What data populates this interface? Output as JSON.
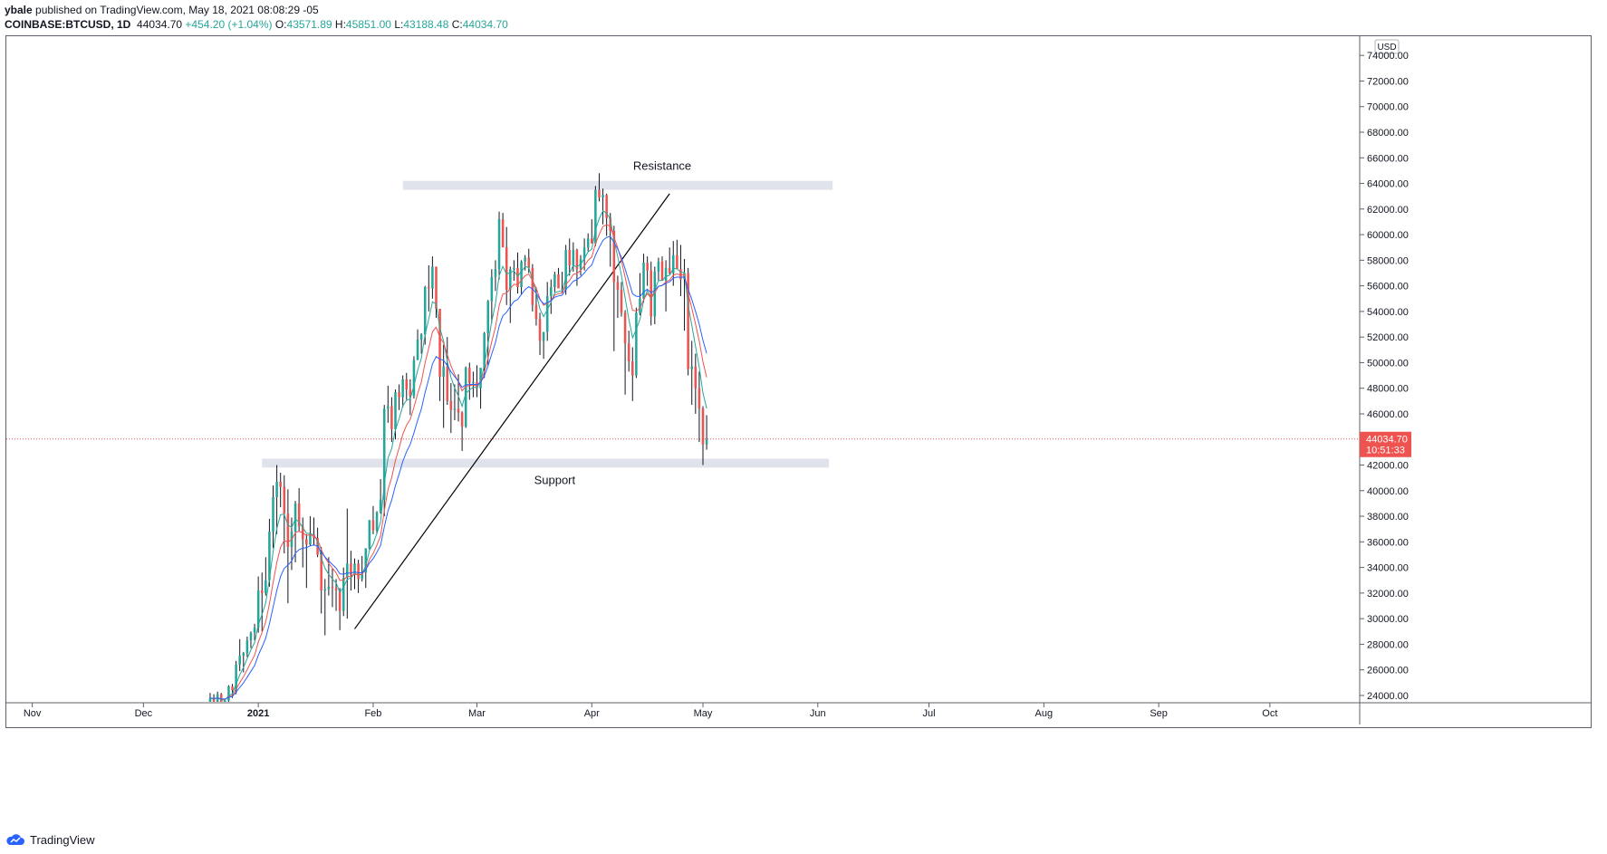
{
  "header": {
    "published_by": "ybale",
    "published_text": "published on TradingView.com, May 18, 2021 08:08:29 -05",
    "symbol": "COINBASE:BTCUSD, 1D",
    "last": "44034.70",
    "change": "+454.20 (+1.04%)",
    "o_label": "O:",
    "o_value": "43571.89",
    "h_label": "H:",
    "h_value": "45851.00",
    "l_label": "L:",
    "l_value": "43188.48",
    "c_label": "C:",
    "c_value": "44034.70"
  },
  "footer": {
    "logo_text": "TradingView"
  },
  "colors": {
    "up": "#26a69a",
    "down": "#ef5350",
    "wick": "#131722",
    "ma_fast": "#26a69a",
    "ma_mid": "#ef5350",
    "ma_slow": "#2962ff",
    "price_line": "#ef5350",
    "zone": "#e0e3eb",
    "trend": "#000000"
  },
  "chart_data": {
    "type": "candlestick",
    "currency_label": "USD",
    "y_ticks": [
      "24000.00",
      "26000.00",
      "28000.00",
      "30000.00",
      "32000.00",
      "34000.00",
      "36000.00",
      "38000.00",
      "40000.00",
      "42000.00",
      "44000.00",
      "46000.00",
      "48000.00",
      "50000.00",
      "52000.00",
      "54000.00",
      "56000.00",
      "58000.00",
      "60000.00",
      "62000.00",
      "64000.00",
      "66000.00",
      "68000.00",
      "70000.00",
      "72000.00",
      "74000.00"
    ],
    "ylim": [
      23500,
      75500
    ],
    "x_ticks": [
      {
        "label": "Nov",
        "date": "2020-11-01",
        "bold": false
      },
      {
        "label": "Dec",
        "date": "2020-12-01",
        "bold": false
      },
      {
        "label": "2021",
        "date": "2021-01-01",
        "bold": true
      },
      {
        "label": "Feb",
        "date": "2021-02-01",
        "bold": false
      },
      {
        "label": "Mar",
        "date": "2021-03-01",
        "bold": false
      },
      {
        "label": "Apr",
        "date": "2021-04-01",
        "bold": false
      },
      {
        "label": "May",
        "date": "2021-05-01",
        "bold": false
      },
      {
        "label": "Jun",
        "date": "2021-06-01",
        "bold": false
      },
      {
        "label": "Jul",
        "date": "2021-07-01",
        "bold": false
      },
      {
        "label": "Aug",
        "date": "2021-08-01",
        "bold": false
      },
      {
        "label": "Sep",
        "date": "2021-09-01",
        "bold": false
      },
      {
        "label": "Oct",
        "date": "2021-10-01",
        "bold": false
      }
    ],
    "xlim": [
      "2020-10-25",
      "2021-10-25"
    ],
    "last_price": {
      "value": 44034.7,
      "label": "44034.70",
      "countdown": "10:51:33"
    },
    "annotations": [
      {
        "type": "zone",
        "label": "Resistance",
        "x_start": "2021-02-09",
        "x_end": "2021-06-05",
        "y_low": 63500,
        "y_high": 64200
      },
      {
        "type": "zone",
        "label": "Support",
        "x_start": "2021-01-02",
        "x_end": "2021-06-04",
        "y_low": 41800,
        "y_high": 42500
      },
      {
        "type": "trendline",
        "x_start": "2021-01-27",
        "y_start": 29200,
        "x_end": "2021-04-22",
        "y_end": 63200
      }
    ],
    "first_date": "2020-12-19",
    "candles": [
      [
        23100,
        24200,
        22600,
        23800
      ],
      [
        23800,
        24100,
        23000,
        23500
      ],
      [
        23500,
        24300,
        23100,
        24100
      ],
      [
        24100,
        24200,
        22700,
        23300
      ],
      [
        23300,
        23600,
        22900,
        23600
      ],
      [
        23600,
        24800,
        23300,
        24700
      ],
      [
        24700,
        24900,
        23800,
        24400
      ],
      [
        24400,
        26700,
        24100,
        26400
      ],
      [
        26400,
        28400,
        25900,
        27100
      ],
      [
        27100,
        27400,
        25800,
        27300
      ],
      [
        27300,
        28600,
        27000,
        28300
      ],
      [
        28300,
        29000,
        27700,
        28900
      ],
      [
        28900,
        29600,
        28300,
        29300
      ],
      [
        29300,
        33300,
        28900,
        32200
      ],
      [
        32200,
        33600,
        29000,
        32000
      ],
      [
        32000,
        34800,
        31800,
        33000
      ],
      [
        33000,
        37800,
        32500,
        36800
      ],
      [
        36800,
        40400,
        35500,
        39500
      ],
      [
        39500,
        42000,
        36600,
        40700
      ],
      [
        40700,
        41400,
        38700,
        40300
      ],
      [
        40300,
        41200,
        35100,
        38200
      ],
      [
        38200,
        40100,
        31200,
        35600
      ],
      [
        35600,
        37900,
        33800,
        36800
      ],
      [
        36800,
        39200,
        34400,
        39000
      ],
      [
        39000,
        40200,
        36800,
        37200
      ],
      [
        37200,
        37900,
        34000,
        36200
      ],
      [
        36200,
        36600,
        32400,
        35800
      ],
      [
        35800,
        38000,
        35700,
        36600
      ],
      [
        36600,
        37900,
        35700,
        36300
      ],
      [
        36300,
        37100,
        34800,
        35000
      ],
      [
        35000,
        35600,
        30400,
        32200
      ],
      [
        32200,
        33100,
        28700,
        32300
      ],
      [
        32300,
        34800,
        31800,
        32500
      ],
      [
        32500,
        33900,
        30900,
        32400
      ],
      [
        32400,
        33100,
        30600,
        32200
      ],
      [
        32200,
        32400,
        29100,
        30600
      ],
      [
        30600,
        34000,
        30200,
        33200
      ],
      [
        33200,
        38600,
        30000,
        34300
      ],
      [
        34300,
        35300,
        32200,
        33400
      ],
      [
        33400,
        34700,
        32300,
        34300
      ],
      [
        34300,
        34600,
        32000,
        33100
      ],
      [
        33100,
        34900,
        32900,
        33600
      ],
      [
        33600,
        35400,
        32400,
        35500
      ],
      [
        35500,
        37700,
        35400,
        37700
      ],
      [
        37700,
        38800,
        36600,
        36900
      ],
      [
        36900,
        38400,
        36600,
        38300
      ],
      [
        38300,
        40900,
        38200,
        39300
      ],
      [
        39300,
        46700,
        38000,
        46400
      ],
      [
        46400,
        48200,
        45300,
        46600
      ],
      [
        46600,
        47300,
        43800,
        44800
      ],
      [
        44800,
        47900,
        44000,
        47700
      ],
      [
        47700,
        48300,
        46300,
        47300
      ],
      [
        47300,
        49000,
        46500,
        48700
      ],
      [
        48700,
        49200,
        47100,
        47900
      ],
      [
        47900,
        48700,
        45900,
        47400
      ],
      [
        47400,
        50500,
        47200,
        50200
      ],
      [
        50200,
        52600,
        50200,
        51800
      ],
      [
        51800,
        52300,
        50700,
        52200
      ],
      [
        52200,
        56000,
        51400,
        55900
      ],
      [
        55900,
        57600,
        54000,
        55800
      ],
      [
        55800,
        58300,
        55000,
        57500
      ],
      [
        57500,
        57500,
        53500,
        54200
      ],
      [
        54200,
        54200,
        47000,
        48900
      ],
      [
        48900,
        51400,
        44900,
        49700
      ],
      [
        49700,
        52000,
        46700,
        47000
      ],
      [
        47000,
        48400,
        44500,
        46300
      ],
      [
        46300,
        48300,
        45500,
        46400
      ],
      [
        46400,
        49100,
        45400,
        46100
      ],
      [
        46100,
        46200,
        43100,
        45000
      ],
      [
        45000,
        49700,
        44900,
        49600
      ],
      [
        49600,
        50000,
        47100,
        48400
      ],
      [
        48400,
        49300,
        47300,
        48500
      ],
      [
        48500,
        49800,
        47300,
        48000
      ],
      [
        48000,
        49400,
        46400,
        49600
      ],
      [
        49600,
        52400,
        48800,
        52300
      ],
      [
        52300,
        54900,
        49800,
        54800
      ],
      [
        54800,
        57300,
        53100,
        56700
      ],
      [
        56700,
        58000,
        55600,
        57300
      ],
      [
        57300,
        61800,
        56500,
        61200
      ],
      [
        61200,
        61700,
        59200,
        59000
      ],
      [
        59000,
        60600,
        54500,
        55700
      ],
      [
        55700,
        57500,
        53100,
        57300
      ],
      [
        57300,
        58000,
        56400,
        57400
      ],
      [
        57400,
        58600,
        55400,
        55900
      ],
      [
        55900,
        58000,
        55300,
        57900
      ],
      [
        57900,
        58400,
        57200,
        58200
      ],
      [
        58200,
        58900,
        57000,
        57400
      ],
      [
        57400,
        57700,
        54000,
        54500
      ],
      [
        54500,
        55900,
        52900,
        53400
      ],
      [
        53400,
        53900,
        50600,
        51700
      ],
      [
        51700,
        52300,
        50300,
        52400
      ],
      [
        52400,
        56300,
        51700,
        55200
      ],
      [
        55200,
        56500,
        53800,
        55900
      ],
      [
        55900,
        57100,
        55500,
        56900
      ],
      [
        56900,
        57400,
        55900,
        55800
      ],
      [
        55800,
        57100,
        55400,
        55700
      ],
      [
        55700,
        59200,
        55300,
        58800
      ],
      [
        58800,
        59700,
        56800,
        57600
      ],
      [
        57600,
        59400,
        57100,
        58800
      ],
      [
        58800,
        58900,
        56000,
        57300
      ],
      [
        57300,
        58400,
        56800,
        58100
      ],
      [
        58100,
        59700,
        57200,
        59000
      ],
      [
        59000,
        60100,
        58700,
        59700
      ],
      [
        59700,
        61200,
        59500,
        59300
      ],
      [
        59300,
        63800,
        59100,
        63500
      ],
      [
        63500,
        64800,
        62600,
        62900
      ],
      [
        62900,
        63600,
        60800,
        63100
      ],
      [
        63100,
        63200,
        59900,
        61300
      ],
      [
        61300,
        61700,
        57500,
        60300
      ],
      [
        60300,
        60700,
        50900,
        56300
      ],
      [
        56300,
        56800,
        53500,
        55700
      ],
      [
        55700,
        56300,
        53600,
        53900
      ],
      [
        53900,
        54100,
        47500,
        51500
      ],
      [
        51500,
        52500,
        49300,
        50100
      ],
      [
        50100,
        51200,
        47000,
        49000
      ],
      [
        49000,
        54300,
        48800,
        53900
      ],
      [
        53900,
        57000,
        53700,
        55000
      ],
      [
        55000,
        58500,
        54700,
        57800
      ],
      [
        57800,
        58300,
        56000,
        57200
      ],
      [
        57200,
        57900,
        52900,
        53600
      ],
      [
        53600,
        57500,
        53000,
        57100
      ],
      [
        57100,
        58200,
        56400,
        57900
      ],
      [
        57900,
        58300,
        56800,
        56400
      ],
      [
        56400,
        58000,
        54000,
        57400
      ],
      [
        57400,
        59000,
        56900,
        57000
      ],
      [
        57000,
        59500,
        56000,
        58400
      ],
      [
        58400,
        59600,
        57400,
        57300
      ],
      [
        57300,
        59200,
        55200,
        56500
      ],
      [
        56500,
        58100,
        52500,
        57000
      ],
      [
        57000,
        57400,
        49000,
        49500
      ],
      [
        49500,
        51700,
        46700,
        49700
      ],
      [
        49700,
        50700,
        46000,
        48000
      ],
      [
        48000,
        49300,
        43800,
        46400
      ],
      [
        46400,
        46600,
        42000,
        43600
      ],
      [
        43600,
        45900,
        43200,
        44000
      ]
    ]
  }
}
